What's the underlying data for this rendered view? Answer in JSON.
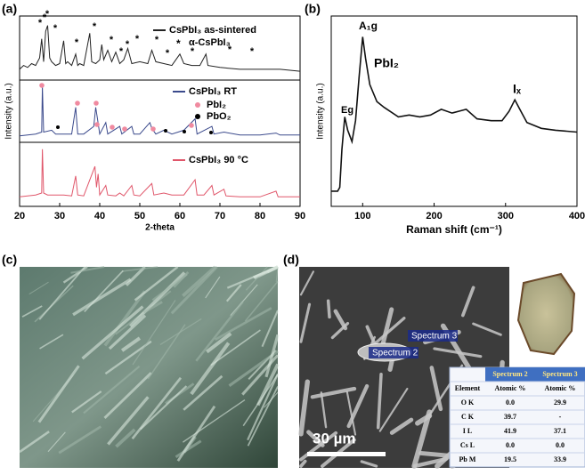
{
  "figure": {
    "panel_labels": [
      "(a)",
      "(b)",
      "(c)",
      "(d)"
    ]
  },
  "chart_data": [
    {
      "type": "line",
      "xlabel": "2-theta",
      "ylabel": "Intensity (a.u.)",
      "xlim": [
        20,
        90
      ],
      "xticks": [
        20,
        30,
        40,
        50,
        60,
        70,
        80,
        90
      ],
      "ylim": [
        0,
        100
      ],
      "annotations": [
        "α-CsPbI₃",
        "PbI₂",
        "PbO₂"
      ],
      "series": [
        {
          "name": "CsPbI₃ as-sintered",
          "color": "#222222",
          "x": [
            20,
            21,
            22,
            23,
            24,
            25,
            25.5,
            26,
            26.5,
            27,
            27.5,
            28,
            29,
            30,
            31,
            31.5,
            32,
            33,
            34,
            34.5,
            35,
            36,
            37.5,
            38,
            39,
            40,
            40.5,
            41,
            42,
            43,
            44,
            45,
            46,
            47,
            48,
            50,
            52,
            53,
            54,
            56,
            58,
            60,
            61,
            63,
            65,
            66.5,
            67,
            70,
            75,
            80,
            85,
            90
          ],
          "values": [
            72,
            74,
            73,
            75,
            74,
            78,
            88,
            76,
            92,
            95,
            78,
            76,
            74,
            75,
            87,
            75,
            76,
            74,
            80,
            74,
            75,
            74,
            91,
            76,
            75,
            77,
            85,
            77,
            82,
            76,
            81,
            75,
            77,
            83,
            75,
            76,
            75,
            82,
            76,
            75,
            74,
            80,
            75,
            74,
            74,
            80,
            74,
            73,
            72,
            72,
            72,
            71
          ]
        },
        {
          "name": "CsPbI₃ RT",
          "color": "#3b4a8c",
          "x": [
            20,
            24,
            25.5,
            25.7,
            26,
            28,
            29,
            31,
            33,
            34,
            34.5,
            36,
            38.5,
            39,
            39.5,
            40,
            41.5,
            42,
            45,
            45.5,
            48,
            48.5,
            50,
            52.5,
            53,
            54,
            56,
            58,
            61,
            63.8,
            64.3,
            68,
            68.5,
            71,
            75,
            80,
            84,
            85,
            90
          ],
          "values": [
            37,
            38,
            39,
            63,
            39,
            40,
            38,
            38,
            38,
            52,
            38,
            38,
            42,
            52,
            45,
            38,
            44,
            38,
            42,
            38,
            42,
            38,
            38,
            44,
            41,
            38,
            40,
            38,
            40,
            46,
            38,
            42,
            38,
            39,
            37.5,
            37.5,
            38.5,
            37.5,
            37.5
          ]
        },
        {
          "name": "CsPbI₃ 90 °C",
          "color": "#e0566a",
          "x": [
            20,
            24,
            25.5,
            25.7,
            26,
            27,
            29,
            31,
            33,
            34,
            34.5,
            36,
            38.8,
            39.2,
            39.6,
            40,
            41.5,
            42,
            44,
            45,
            46,
            48,
            48.5,
            50,
            52.5,
            53,
            53.5,
            56,
            58,
            61,
            63.8,
            64.3,
            66,
            68,
            68.5,
            71,
            71.5,
            75,
            80,
            84,
            84.5,
            90
          ],
          "values": [
            5,
            6,
            7,
            30,
            7,
            6,
            6,
            6,
            5.5,
            16,
            6,
            5.5,
            21,
            10,
            17,
            6,
            11,
            6,
            5.5,
            7,
            5.5,
            11,
            6,
            5.5,
            11,
            12,
            6,
            7,
            6,
            6,
            14,
            6,
            6,
            11,
            6,
            9,
            5.5,
            5,
            5,
            8,
            5,
            5
          ]
        }
      ]
    },
    {
      "type": "line",
      "xlabel": "Raman shift (cm⁻¹)",
      "ylabel": "Intensity (a.u.)",
      "xlim": [
        56,
        400
      ],
      "xticks": [
        100,
        200,
        300,
        400
      ],
      "ylim": [
        0,
        100
      ],
      "annotations": [
        "A₁g",
        "PbI₂",
        "Eg",
        "Iₓ"
      ],
      "series": [
        {
          "color": "#111111",
          "x": [
            56,
            65,
            68,
            71,
            75,
            79,
            85,
            90,
            95,
            100,
            104,
            110,
            120,
            130,
            150,
            165,
            180,
            195,
            210,
            225,
            235,
            245,
            260,
            280,
            295,
            305,
            313,
            320,
            330,
            350,
            370,
            400
          ],
          "values": [
            8,
            8,
            10,
            30,
            47,
            40,
            34,
            45,
            68,
            89,
            78,
            64,
            55,
            52,
            47,
            48,
            47,
            48,
            51,
            49,
            50,
            51,
            46,
            45,
            45,
            50,
            56,
            51,
            44,
            41,
            40,
            39
          ]
        }
      ]
    }
  ],
  "sem": {
    "spectrum_labels": [
      "Spectrum 2",
      "Spectrum 3"
    ],
    "scale_bar": "30 µm",
    "table": {
      "header": [
        "Spectrum 2",
        "Spectrum 3"
      ],
      "rows": [
        [
          "Element",
          "Atomic %",
          "Atomic %"
        ],
        [
          "O K",
          "0.0",
          "29.9"
        ],
        [
          "C K",
          "39.7",
          "-"
        ],
        [
          "I L",
          "41.9",
          "37.1"
        ],
        [
          "Cs L",
          "0.0",
          "0.0"
        ],
        [
          "Pb M",
          "19.5",
          "33.9"
        ]
      ]
    }
  }
}
